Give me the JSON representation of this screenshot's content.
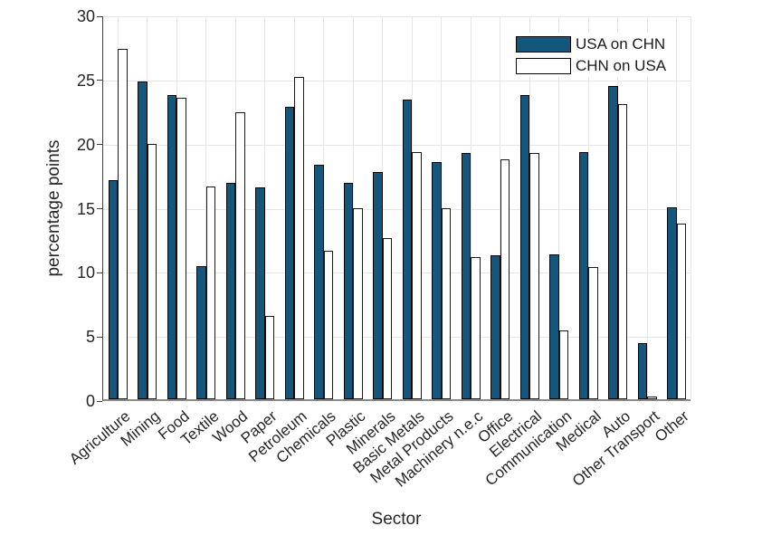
{
  "chart_data": {
    "type": "bar",
    "title": "",
    "xlabel": "Sector",
    "ylabel": "percentage points",
    "ylim": [
      0,
      30
    ],
    "yticks": [
      0,
      5,
      10,
      15,
      20,
      25,
      30
    ],
    "grid": true,
    "legend_position": "top-right-inside",
    "categories": [
      "Agriculture",
      "Mining",
      "Food",
      "Textile",
      "Wood",
      "Paper",
      "Petroleum",
      "Chemicals",
      "Plastic",
      "Minerals",
      "Basic Metals",
      "Metal Products",
      "Machinery n.e.c",
      "Office",
      "Electrical",
      "Communication",
      "Medical",
      "Auto",
      "Other Transport",
      "Other"
    ],
    "series": [
      {
        "name": "USA on CHN",
        "fill_color": "#15567C",
        "edge_color": "#000000",
        "values": [
          17.1,
          24.8,
          23.7,
          10.4,
          16.9,
          16.5,
          22.8,
          18.3,
          16.9,
          17.7,
          23.4,
          18.5,
          19.2,
          11.2,
          23.7,
          11.3,
          19.3,
          24.4,
          4.4,
          15.0
        ]
      },
      {
        "name": "CHN on USA",
        "fill_color": "#FFFFFF",
        "edge_color": "#1A1A1A",
        "values": [
          27.3,
          19.9,
          23.5,
          16.6,
          22.4,
          6.5,
          25.1,
          11.6,
          14.9,
          12.6,
          19.3,
          14.9,
          11.1,
          18.7,
          19.2,
          5.4,
          10.3,
          23.0,
          0.2,
          13.7
        ]
      }
    ],
    "colors": {
      "grid": "#E6E6E6",
      "axis_text": "#262626",
      "x_axis_line": "#8A8A8A",
      "y_axis_line": "#3F3F3F",
      "background": "#FFFFFF"
    }
  }
}
